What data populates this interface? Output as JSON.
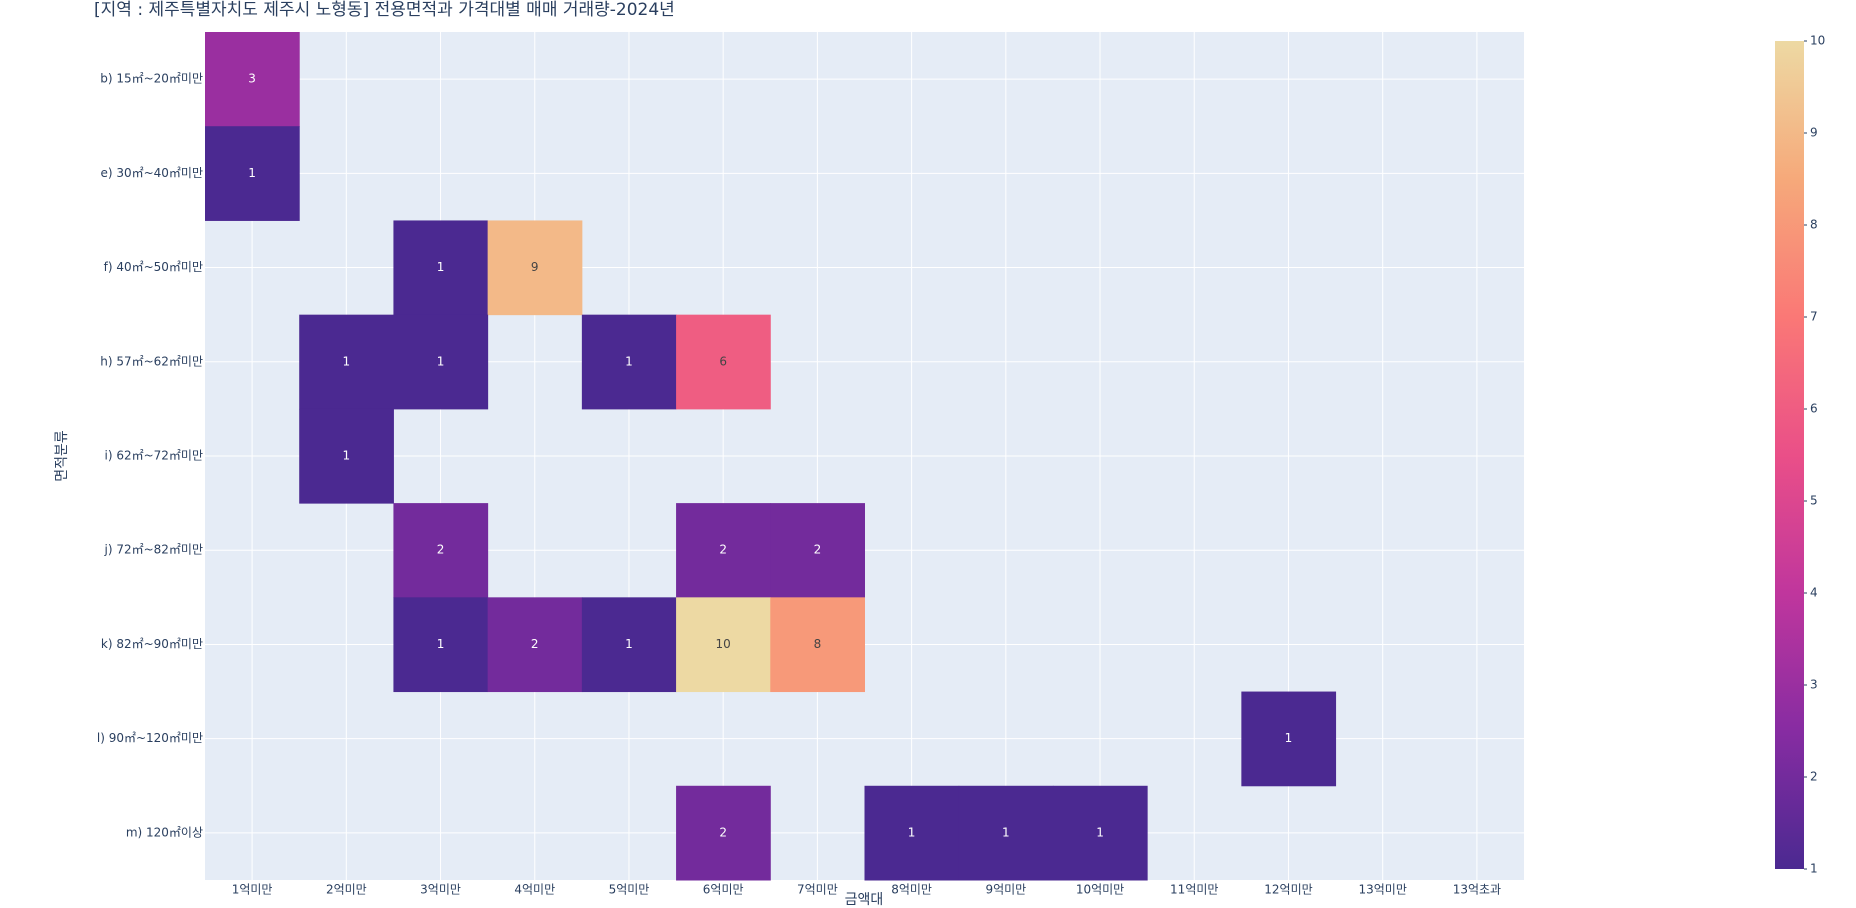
{
  "chart_data": {
    "type": "heatmap",
    "title": "[지역 : 제주특별자치도 제주시 노형동] 전용면적과 가격대별 매매 거래량-2024년",
    "x_label": "금액대",
    "y_label": "면적분류",
    "x": [
      "1억미만",
      "2억미만",
      "3억미만",
      "4억미만",
      "5억미만",
      "6억미만",
      "7억미만",
      "8억미만",
      "9억미만",
      "10억미만",
      "11억미만",
      "12억미만",
      "13억미만",
      "13억초과"
    ],
    "y": [
      "b) 15㎡~20㎡미만",
      "e) 30㎡~40㎡미만",
      "f) 40㎡~50㎡미만",
      "h) 57㎡~62㎡미만",
      "i) 62㎡~72㎡미만",
      "j) 72㎡~82㎡미만",
      "k) 82㎡~90㎡미만",
      "l) 90㎡~120㎡미만",
      "m) 120㎡이상"
    ],
    "z": [
      [
        3,
        null,
        null,
        null,
        null,
        null,
        null,
        null,
        null,
        null,
        null,
        null,
        null,
        null
      ],
      [
        1,
        null,
        null,
        null,
        null,
        null,
        null,
        null,
        null,
        null,
        null,
        null,
        null,
        null
      ],
      [
        null,
        null,
        1,
        9,
        null,
        null,
        null,
        null,
        null,
        null,
        null,
        null,
        null,
        null
      ],
      [
        null,
        1,
        1,
        null,
        1,
        6,
        null,
        null,
        null,
        null,
        null,
        null,
        null,
        null
      ],
      [
        null,
        1,
        null,
        null,
        null,
        null,
        null,
        null,
        null,
        null,
        null,
        null,
        null,
        null
      ],
      [
        null,
        null,
        2,
        null,
        null,
        2,
        2,
        null,
        null,
        null,
        null,
        null,
        null,
        null
      ],
      [
        null,
        null,
        1,
        2,
        1,
        10,
        8,
        null,
        null,
        null,
        null,
        null,
        null,
        null
      ],
      [
        null,
        null,
        null,
        null,
        null,
        null,
        null,
        null,
        null,
        null,
        null,
        1,
        null,
        null
      ],
      [
        null,
        null,
        null,
        null,
        null,
        2,
        null,
        1,
        1,
        1,
        null,
        null,
        null,
        null
      ]
    ],
    "zlim": [
      1,
      10
    ],
    "colorbar_ticks": [
      1,
      2,
      3,
      4,
      5,
      6,
      7,
      8,
      9,
      10
    ],
    "colorscale": [
      "#4b2991",
      "#872ca2",
      "#c0369d",
      "#ea4f88",
      "#fa7876",
      "#f6a97a",
      "#edd9a3"
    ],
    "grid": true
  }
}
